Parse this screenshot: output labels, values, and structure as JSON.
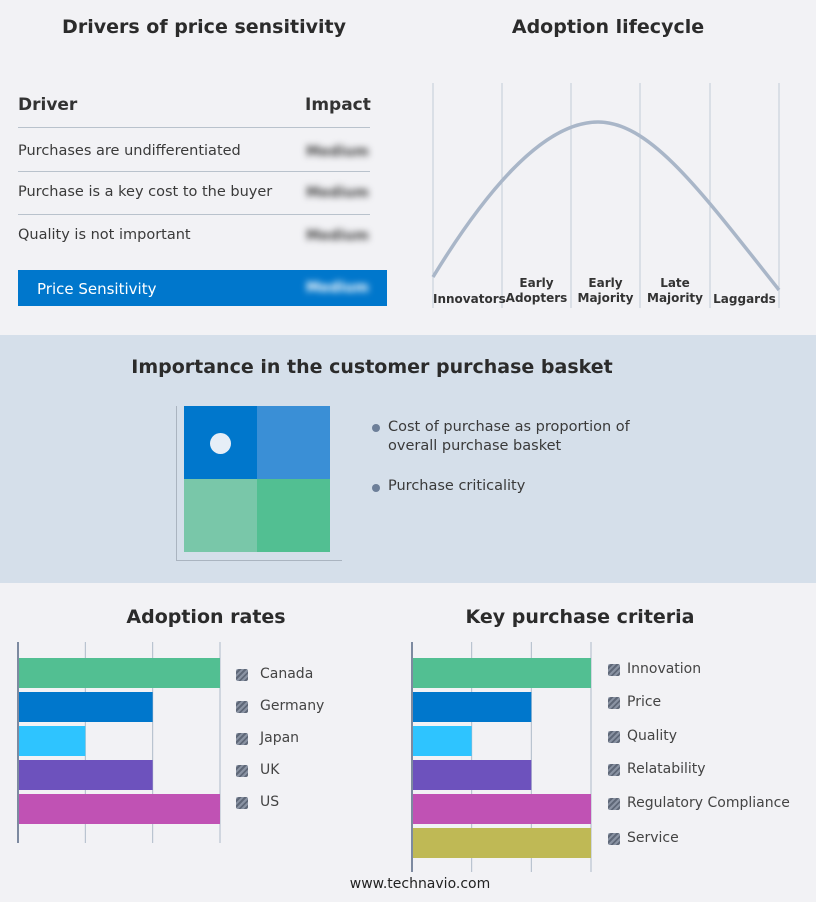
{
  "drivers": {
    "title": "Drivers of price sensitivity",
    "col_driver": "Driver",
    "col_impact": "Impact",
    "rows": [
      {
        "driver": "Purchases are undifferentiated",
        "impact": "Medium"
      },
      {
        "driver": "Purchase is a key cost to the buyer",
        "impact": "Medium"
      },
      {
        "driver": "Quality is not important",
        "impact": "Medium"
      }
    ],
    "summary": {
      "label": "Price Sensitivity",
      "value": "Medium"
    }
  },
  "lifecycle": {
    "title": "Adoption lifecycle",
    "stages": [
      [
        "Innovators"
      ],
      [
        "Early",
        "Adopters"
      ],
      [
        "Early",
        "Majority"
      ],
      [
        "Late",
        "Majority"
      ],
      [
        "Laggards"
      ]
    ],
    "highlight": "Early Majority"
  },
  "basket": {
    "title": "Importance in the customer purchase basket",
    "legend": [
      "Cost of purchase as proportion of overall purchase basket",
      "Purchase criticality"
    ],
    "colors": [
      "#0077cc",
      "#3a8fd6",
      "#79c7a9",
      "#52bf92"
    ]
  },
  "chart_data": [
    {
      "type": "bar",
      "orientation": "horizontal",
      "title": "Adoption rates",
      "categories": [
        "Canada",
        "Germany",
        "Japan",
        "UK",
        "US"
      ],
      "values": [
        3,
        2,
        1,
        2,
        3
      ],
      "xlim": [
        0,
        3
      ],
      "grid": true,
      "legend": "right",
      "colors": [
        "#52bf92",
        "#0077cc",
        "#2ec4ff",
        "#6d52bd",
        "#c052b4"
      ]
    },
    {
      "type": "bar",
      "orientation": "horizontal",
      "title": "Key purchase criteria",
      "categories": [
        "Innovation",
        "Price",
        "Quality",
        "Relatability",
        "Regulatory Compliance",
        "Service"
      ],
      "values": [
        3,
        2,
        1,
        2,
        3,
        3
      ],
      "xlim": [
        0,
        3
      ],
      "grid": true,
      "legend": "right",
      "colors": [
        "#52bf92",
        "#0077cc",
        "#2ec4ff",
        "#6d52bd",
        "#c052b4",
        "#bfb955"
      ]
    }
  ],
  "footer": "www.technavio.com"
}
